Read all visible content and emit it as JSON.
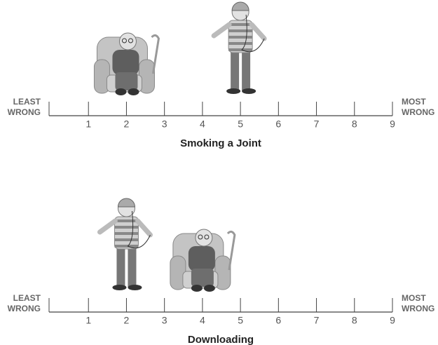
{
  "panels": [
    {
      "title": "Smoking a Joint",
      "left_label": [
        "LEAST",
        "WRONG"
      ],
      "right_label": [
        "MOST",
        "WRONG"
      ],
      "xlim": [
        0,
        9
      ],
      "xticks": [
        1,
        2,
        3,
        4,
        5,
        6,
        7,
        8,
        9
      ],
      "elder": 2,
      "teen": 5
    },
    {
      "title": "Downloading",
      "left_label": [
        "LEAST",
        "WRONG"
      ],
      "right_label": [
        "MOST",
        "WRONG"
      ],
      "xlim": [
        0,
        9
      ],
      "xticks": [
        1,
        2,
        3,
        4,
        5,
        6,
        7,
        8,
        9
      ],
      "elder": 4,
      "teen": 2
    }
  ]
}
